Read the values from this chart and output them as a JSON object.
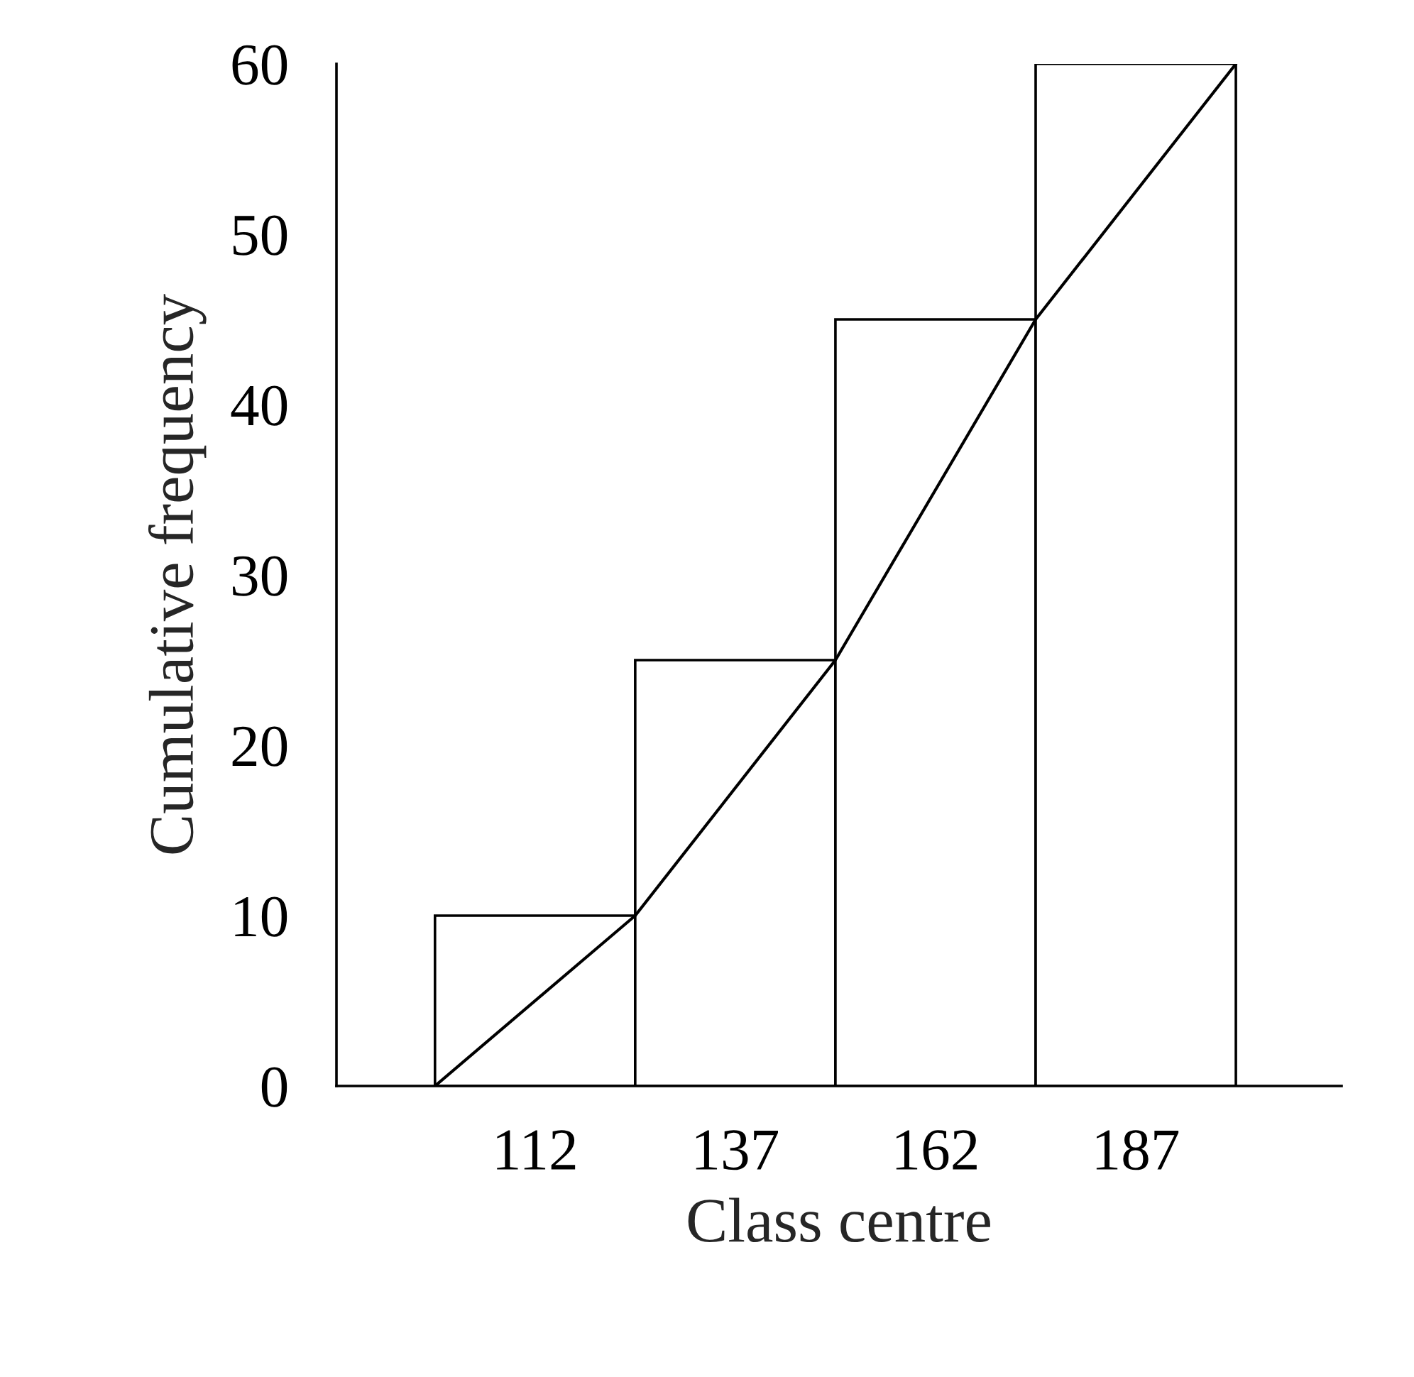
{
  "chart_data": {
    "type": "histogram",
    "xlabel": "Class centre",
    "ylabel": "Cumulative frequency",
    "bins": [
      99.5,
      124.5,
      149.5,
      174.5,
      199.5
    ],
    "values": [
      10,
      25,
      45,
      60
    ],
    "color": "#ffffff",
    "series": [
      {
        "type": "line",
        "x": [
          99.5,
          124.5,
          149.5,
          174.5,
          199.5
        ],
        "values": [
          0,
          10,
          25,
          45,
          60
        ],
        "color": "#000000"
      }
    ],
    "xlim": [
      87.2,
      212.7
    ],
    "xticks": [
      112,
      137,
      162,
      187
    ],
    "ylim": [
      0,
      60
    ],
    "yticks": [
      0,
      10,
      20,
      30,
      40,
      50,
      60
    ],
    "grid": false
  }
}
